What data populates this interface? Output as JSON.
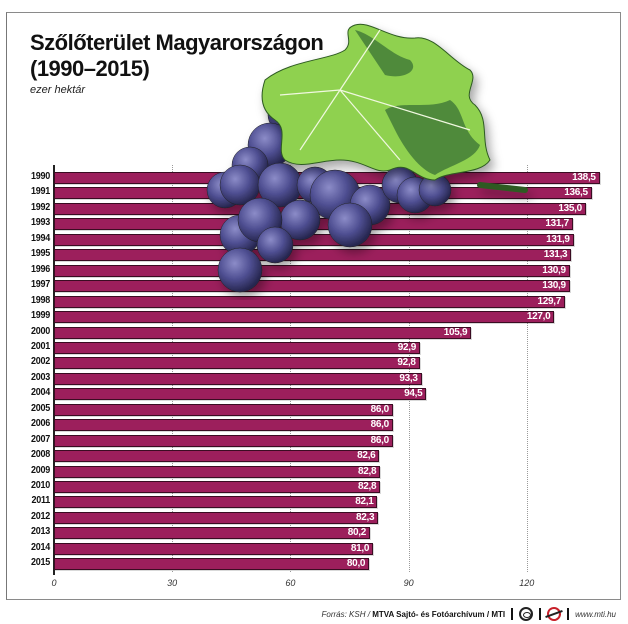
{
  "header": {
    "title_line1": "Szőlőterület Magyarországon",
    "title_line2": "(1990–2015)",
    "unit": "ezer hektár"
  },
  "footer": {
    "source_prefix": "Forrás: KSH / ",
    "source_org": "MTVA Sajtó- és Fotóarchívum / MTI",
    "website": "www.mti.hu"
  },
  "colors": {
    "bar": "#9c1f5c",
    "bar_border": "#3a0c22",
    "grape": "#4a4a8a",
    "leaf_light": "#8fd14f",
    "leaf_dark": "#4f8a3a"
  },
  "illustration": "grape-bunch-with-leaf",
  "chart_data": {
    "type": "bar",
    "orientation": "horizontal",
    "title": "Szőlőterület Magyarországon (1990–2015)",
    "subtitle": "ezer hektár",
    "xlabel": "",
    "ylabel": "",
    "categories": [
      "1990",
      "1991",
      "1992",
      "1993",
      "1994",
      "1995",
      "1996",
      "1997",
      "1998",
      "1999",
      "2000",
      "2001",
      "2002",
      "2003",
      "2004",
      "2005",
      "2006",
      "2007",
      "2008",
      "2009",
      "2010",
      "2011",
      "2012",
      "2013",
      "2014",
      "2015"
    ],
    "values": [
      138.5,
      136.5,
      135.0,
      131.7,
      131.9,
      131.3,
      130.9,
      130.9,
      129.7,
      127.0,
      105.9,
      92.9,
      92.8,
      93.3,
      94.5,
      86.0,
      86.0,
      86.0,
      82.6,
      82.8,
      82.8,
      82.1,
      82.3,
      80.2,
      81.0,
      80.0
    ],
    "value_labels": [
      "138,5",
      "136,5",
      "135,0",
      "131,7",
      "131,9",
      "131,3",
      "130,9",
      "130,9",
      "129,7",
      "127,0",
      "105,9",
      "92,9",
      "92,8",
      "93,3",
      "94,5",
      "86,0",
      "86,0",
      "86,0",
      "82,6",
      "82,8",
      "82,8",
      "82,1",
      "82,3",
      "80,2",
      "81,0",
      "80,0"
    ],
    "xticks": [
      "0",
      "30",
      "60",
      "90",
      "120"
    ],
    "xlim": [
      0,
      140
    ],
    "grid": "vertical dotted",
    "legend": "none",
    "source": "Forrás: KSH / MTVA Sajtó- és Fotóarchívum / MTI"
  }
}
